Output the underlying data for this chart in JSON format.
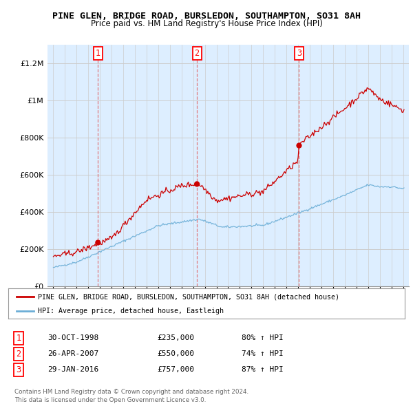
{
  "title": "PINE GLEN, BRIDGE ROAD, BURSLEDON, SOUTHAMPTON, SO31 8AH",
  "subtitle": "Price paid vs. HM Land Registry's House Price Index (HPI)",
  "legend_line1": "PINE GLEN, BRIDGE ROAD, BURSLEDON, SOUTHAMPTON, SO31 8AH (detached house)",
  "legend_line2": "HPI: Average price, detached house, Eastleigh",
  "footer1": "Contains HM Land Registry data © Crown copyright and database right 2024.",
  "footer2": "This data is licensed under the Open Government Licence v3.0.",
  "transactions": [
    {
      "num": 1,
      "date": "30-OCT-1998",
      "price": 235000,
      "hpi_pct": "80%",
      "x": 1998.83
    },
    {
      "num": 2,
      "date": "26-APR-2007",
      "price": 550000,
      "hpi_pct": "74%",
      "x": 2007.32
    },
    {
      "num": 3,
      "date": "29-JAN-2016",
      "price": 757000,
      "hpi_pct": "87%",
      "x": 2016.08
    }
  ],
  "ylim": [
    0,
    1300000
  ],
  "xlim": [
    1994.5,
    2025.5
  ],
  "hpi_color": "#6baed6",
  "sale_color": "#cc0000",
  "vline_color": "#e06060",
  "bg_fill_color": "#ddeeff",
  "background_color": "#ffffff",
  "grid_color": "#cccccc"
}
